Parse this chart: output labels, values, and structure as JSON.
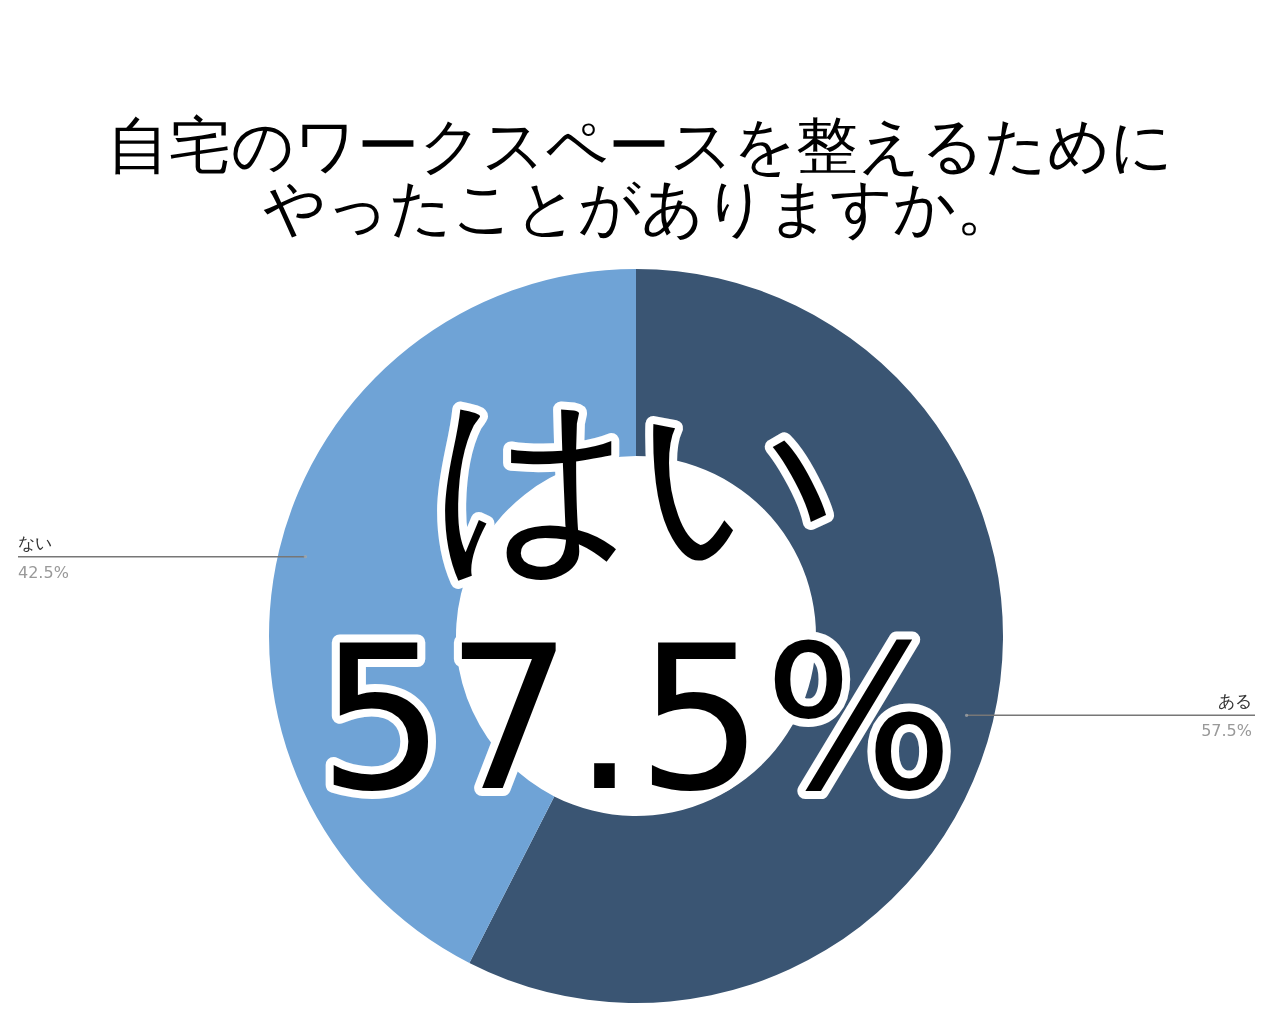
{
  "chart_data": {
    "type": "donut",
    "title": "自宅のワークスペースを整えるためにやったことがありますか。",
    "categories": [
      "ある",
      "ない"
    ],
    "values": [
      57.5,
      42.5
    ],
    "colors": [
      "#3a5573",
      "#6fa3d6"
    ],
    "value_labels": [
      "57.5%",
      "42.5%"
    ],
    "annotations": [
      "はい",
      "57.5%"
    ]
  }
}
